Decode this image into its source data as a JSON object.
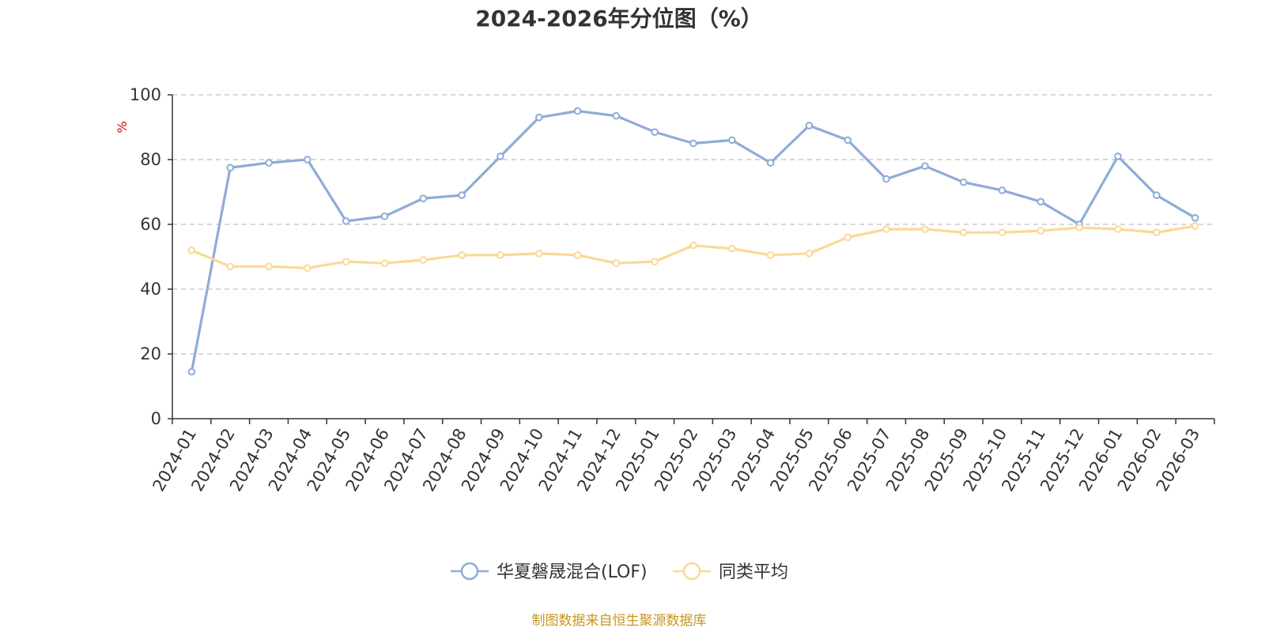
{
  "chart_data": {
    "type": "line",
    "title": "2024-2026年分位图（%）",
    "ylabel": "%",
    "ylim": [
      0,
      100
    ],
    "yticks": [
      0,
      20,
      40,
      60,
      80,
      100
    ],
    "grid": "horizontal-dashed",
    "legend_position": "bottom-center",
    "categories": [
      "2024-01",
      "2024-02",
      "2024-03",
      "2024-04",
      "2024-05",
      "2024-06",
      "2024-07",
      "2024-08",
      "2024-09",
      "2024-10",
      "2024-11",
      "2024-12",
      "2025-01",
      "2025-02",
      "2025-03",
      "2025-04",
      "2025-05",
      "2025-06",
      "2025-07",
      "2025-08",
      "2025-09",
      "2025-10",
      "2025-11",
      "2025-12",
      "2026-01",
      "2026-02",
      "2026-03"
    ],
    "series": [
      {
        "name": "华夏磐晟混合(LOF)",
        "color": "#8eacd8",
        "values": [
          14.5,
          77.5,
          79,
          80,
          61,
          62.5,
          68,
          69,
          81,
          93,
          95,
          93.5,
          88.5,
          85,
          86,
          79,
          90.5,
          86,
          74,
          78,
          73,
          70.5,
          67,
          60,
          81,
          69,
          62
        ]
      },
      {
        "name": "同类平均",
        "color": "#fad996",
        "values": [
          52,
          47,
          47,
          46.5,
          48.5,
          48,
          49,
          50.5,
          50.5,
          51,
          50.5,
          48,
          48.5,
          53.5,
          52.5,
          50.5,
          51,
          56,
          58.5,
          58.5,
          57.5,
          57.5,
          58,
          59,
          58.5,
          57.5,
          59.5
        ]
      }
    ]
  },
  "footer": {
    "source": "制图数据来自恒生聚源数据库"
  }
}
